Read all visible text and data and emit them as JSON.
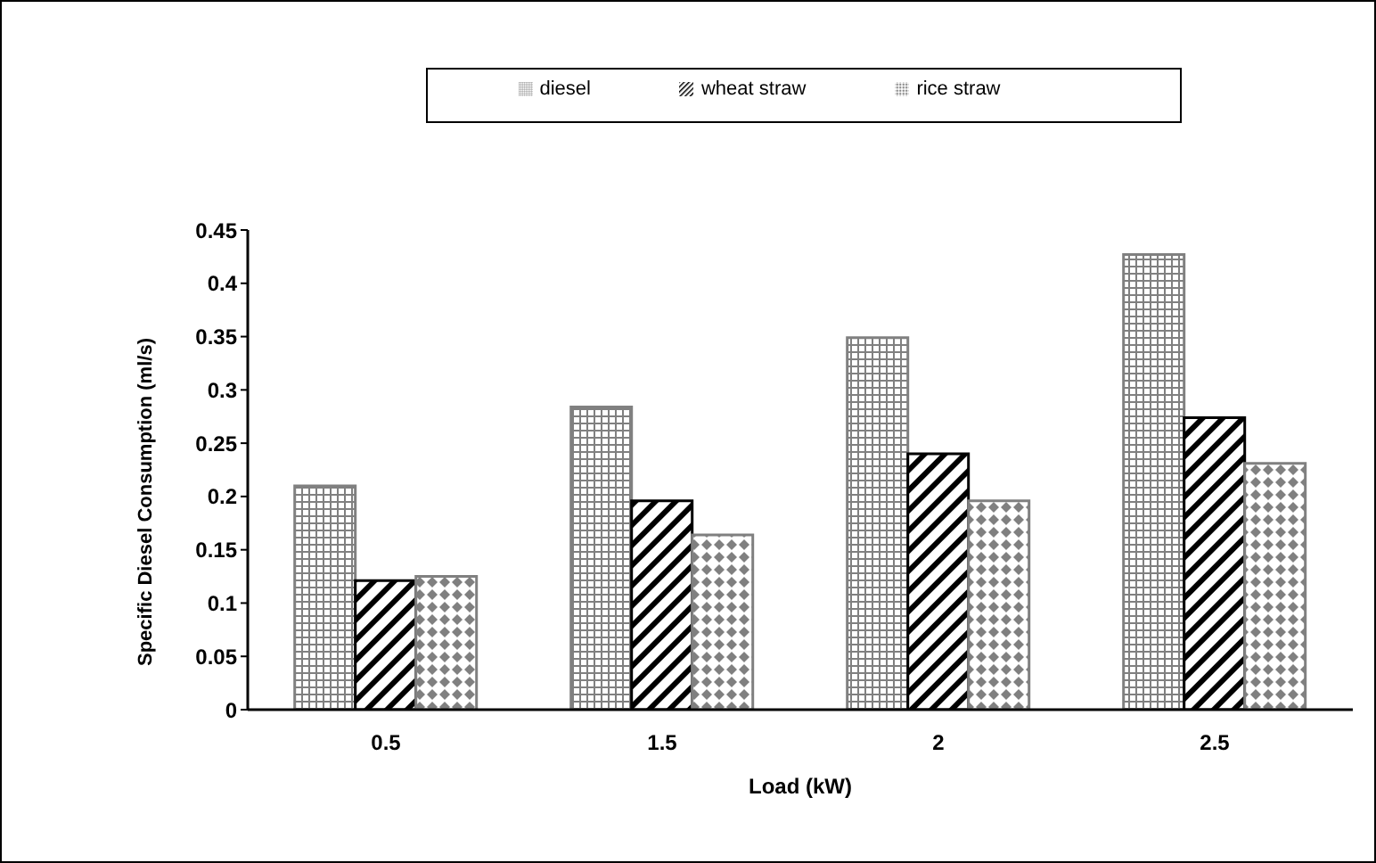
{
  "chart_data": {
    "type": "bar",
    "xlabel": "Load (kW)",
    "ylabel": "Specific Diesel Consumption (ml/s)",
    "categories": [
      "0.5",
      "1.5",
      "2",
      "2.5"
    ],
    "series": [
      {
        "name": "diesel",
        "color": "#808080",
        "values": [
          0.21,
          0.284,
          0.349,
          0.427
        ]
      },
      {
        "name": "wheat straw",
        "color": "#000000",
        "values": [
          0.121,
          0.196,
          0.24,
          0.274
        ]
      },
      {
        "name": "rice straw",
        "color": "#808080",
        "values": [
          0.125,
          0.164,
          0.196,
          0.231
        ]
      }
    ],
    "ylim": [
      0,
      0.45
    ],
    "yticks": [
      0,
      0.05,
      0.1,
      0.15,
      0.2,
      0.25,
      0.3,
      0.35,
      0.4,
      0.45
    ],
    "grid": false,
    "legend": "top"
  }
}
